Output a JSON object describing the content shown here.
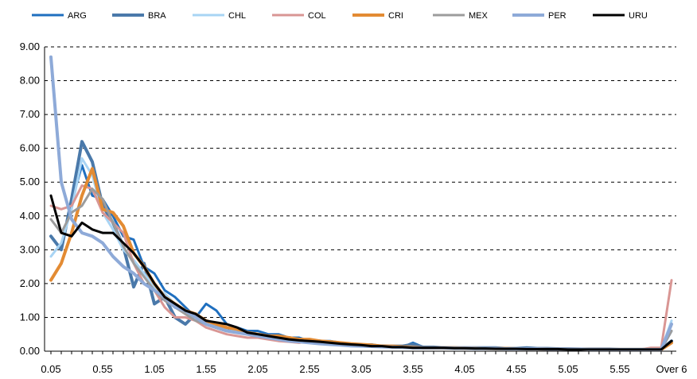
{
  "chart_data": {
    "type": "line",
    "title": "",
    "xlabel": "",
    "ylabel": "",
    "ylim": [
      0,
      9
    ],
    "y_ticks": [
      "0.00",
      "1.00",
      "2.00",
      "3.00",
      "4.00",
      "5.00",
      "6.00",
      "7.00",
      "8.00",
      "9.00"
    ],
    "x_tick_labels": [
      "0.05",
      "0.55",
      "1.05",
      "1.55",
      "2.05",
      "2.55",
      "3.05",
      "3.55",
      "4.05",
      "4.55",
      "5.05",
      "5.55",
      "Over 6"
    ],
    "x_tick_indices": [
      0,
      5,
      10,
      15,
      20,
      25,
      30,
      35,
      40,
      45,
      50,
      55,
      60
    ],
    "grid": "horizontal dashed",
    "legend_position": "top",
    "series": [
      {
        "name": "ARG",
        "color": "#1f6fbf",
        "width": 3,
        "values": [
          3.4,
          3.0,
          4.4,
          5.5,
          4.6,
          4.5,
          4.0,
          3.4,
          3.3,
          2.5,
          2.3,
          1.8,
          1.6,
          1.3,
          1.0,
          1.4,
          1.2,
          0.8,
          0.7,
          0.6,
          0.6,
          0.5,
          0.5,
          0.4,
          0.4,
          0.3,
          0.3,
          0.3,
          0.25,
          0.2,
          0.2,
          0.2,
          0.15,
          0.15,
          0.12,
          0.25,
          0.12,
          0.12,
          0.1,
          0.1,
          0.1,
          0.1,
          0.1,
          0.08,
          0.08,
          0.08,
          0.08,
          0.07,
          0.07,
          0.07,
          0.07,
          0.06,
          0.06,
          0.06,
          0.06,
          0.05,
          0.05,
          0.05,
          0.05,
          0.05,
          0.6
        ]
      },
      {
        "name": "BRA",
        "color": "#4a79aa",
        "width": 4,
        "values": [
          3.4,
          3.0,
          4.5,
          6.2,
          5.6,
          4.3,
          3.8,
          3.1,
          1.9,
          2.6,
          1.4,
          1.6,
          1.0,
          0.8,
          1.1,
          0.8,
          0.7,
          0.6,
          0.6,
          0.55,
          0.5,
          0.45,
          0.4,
          0.4,
          0.35,
          0.3,
          0.3,
          0.25,
          0.2,
          0.2,
          0.18,
          0.15,
          0.15,
          0.15,
          0.15,
          0.2,
          0.12,
          0.12,
          0.1,
          0.1,
          0.1,
          0.1,
          0.1,
          0.1,
          0.08,
          0.08,
          0.1,
          0.08,
          0.08,
          0.07,
          0.07,
          0.06,
          0.06,
          0.06,
          0.06,
          0.05,
          0.05,
          0.05,
          0.05,
          0.05,
          0.3
        ]
      },
      {
        "name": "CHL",
        "color": "#a8d4f4",
        "width": 3,
        "values": [
          2.8,
          3.2,
          4.2,
          5.7,
          5.2,
          4.1,
          3.6,
          3.0,
          2.7,
          2.3,
          1.9,
          1.7,
          1.4,
          1.1,
          1.0,
          0.9,
          0.8,
          0.7,
          0.6,
          0.55,
          0.5,
          0.45,
          0.4,
          0.35,
          0.3,
          0.3,
          0.25,
          0.22,
          0.2,
          0.2,
          0.18,
          0.15,
          0.14,
          0.13,
          0.12,
          0.11,
          0.1,
          0.1,
          0.1,
          0.1,
          0.09,
          0.09,
          0.08,
          0.08,
          0.08,
          0.07,
          0.07,
          0.07,
          0.06,
          0.06,
          0.06,
          0.06,
          0.05,
          0.05,
          0.05,
          0.05,
          0.05,
          0.05,
          0.05,
          0.05,
          0.9
        ]
      },
      {
        "name": "COL",
        "color": "#d99694",
        "width": 3,
        "values": [
          4.3,
          4.2,
          4.3,
          4.9,
          4.8,
          4.1,
          3.8,
          3.5,
          2.6,
          2.0,
          1.8,
          1.3,
          1.0,
          1.0,
          0.9,
          0.7,
          0.6,
          0.5,
          0.45,
          0.4,
          0.4,
          0.35,
          0.3,
          0.28,
          0.25,
          0.3,
          0.22,
          0.22,
          0.2,
          0.18,
          0.18,
          0.15,
          0.15,
          0.12,
          0.12,
          0.1,
          0.1,
          0.1,
          0.1,
          0.1,
          0.1,
          0.08,
          0.08,
          0.08,
          0.08,
          0.08,
          0.07,
          0.07,
          0.07,
          0.07,
          0.06,
          0.06,
          0.06,
          0.06,
          0.06,
          0.05,
          0.05,
          0.05,
          0.1,
          0.1,
          2.1
        ]
      },
      {
        "name": "CRI",
        "color": "#e38b33",
        "width": 4,
        "values": [
          2.1,
          2.6,
          3.5,
          4.6,
          5.4,
          4.2,
          4.1,
          3.7,
          2.9,
          2.5,
          2.0,
          1.6,
          1.4,
          1.2,
          1.1,
          0.9,
          0.8,
          0.7,
          0.65,
          0.55,
          0.5,
          0.45,
          0.45,
          0.4,
          0.35,
          0.35,
          0.3,
          0.28,
          0.25,
          0.22,
          0.2,
          0.18,
          0.15,
          0.15,
          0.13,
          0.12,
          0.1,
          0.1,
          0.1,
          0.1,
          0.09,
          0.09,
          0.08,
          0.08,
          0.08,
          0.07,
          0.07,
          0.07,
          0.06,
          0.06,
          0.06,
          0.06,
          0.05,
          0.05,
          0.05,
          0.05,
          0.05,
          0.05,
          0.05,
          0.05,
          0.25
        ]
      },
      {
        "name": "MEX",
        "color": "#9c9c9c",
        "width": 3,
        "values": [
          3.9,
          3.5,
          4.1,
          4.3,
          4.8,
          4.5,
          3.8,
          3.1,
          2.6,
          2.2,
          1.8,
          1.5,
          1.3,
          1.1,
          0.9,
          0.8,
          0.7,
          0.6,
          0.55,
          0.5,
          0.45,
          0.4,
          0.35,
          0.32,
          0.3,
          0.28,
          0.25,
          0.22,
          0.2,
          0.18,
          0.16,
          0.15,
          0.14,
          0.13,
          0.12,
          0.11,
          0.1,
          0.1,
          0.1,
          0.1,
          0.09,
          0.09,
          0.08,
          0.08,
          0.08,
          0.07,
          0.07,
          0.07,
          0.06,
          0.06,
          0.06,
          0.06,
          0.05,
          0.05,
          0.05,
          0.05,
          0.05,
          0.05,
          0.05,
          0.05,
          0.6
        ]
      },
      {
        "name": "PER",
        "color": "#8eaad8",
        "width": 4,
        "values": [
          8.7,
          5.0,
          3.9,
          3.5,
          3.4,
          3.2,
          2.8,
          2.5,
          2.3,
          2.0,
          1.8,
          1.6,
          1.3,
          1.2,
          1.0,
          0.8,
          0.7,
          0.6,
          0.55,
          0.5,
          0.45,
          0.4,
          0.35,
          0.3,
          0.28,
          0.25,
          0.22,
          0.2,
          0.18,
          0.16,
          0.15,
          0.14,
          0.13,
          0.12,
          0.11,
          0.1,
          0.1,
          0.1,
          0.1,
          0.09,
          0.09,
          0.08,
          0.08,
          0.08,
          0.07,
          0.07,
          0.07,
          0.07,
          0.06,
          0.06,
          0.06,
          0.06,
          0.05,
          0.05,
          0.05,
          0.05,
          0.05,
          0.05,
          0.05,
          0.05,
          0.8
        ]
      },
      {
        "name": "URU",
        "color": "#000000",
        "width": 3,
        "values": [
          4.6,
          3.5,
          3.4,
          3.8,
          3.6,
          3.5,
          3.5,
          3.2,
          2.9,
          2.5,
          2.0,
          1.6,
          1.4,
          1.2,
          1.1,
          0.9,
          0.85,
          0.8,
          0.7,
          0.55,
          0.5,
          0.45,
          0.4,
          0.35,
          0.32,
          0.3,
          0.28,
          0.25,
          0.22,
          0.2,
          0.18,
          0.15,
          0.15,
          0.12,
          0.12,
          0.1,
          0.1,
          0.1,
          0.1,
          0.09,
          0.09,
          0.08,
          0.08,
          0.07,
          0.07,
          0.07,
          0.06,
          0.06,
          0.06,
          0.06,
          0.05,
          0.05,
          0.05,
          0.05,
          0.05,
          0.05,
          0.05,
          0.05,
          0.05,
          0.05,
          0.3
        ]
      }
    ]
  }
}
